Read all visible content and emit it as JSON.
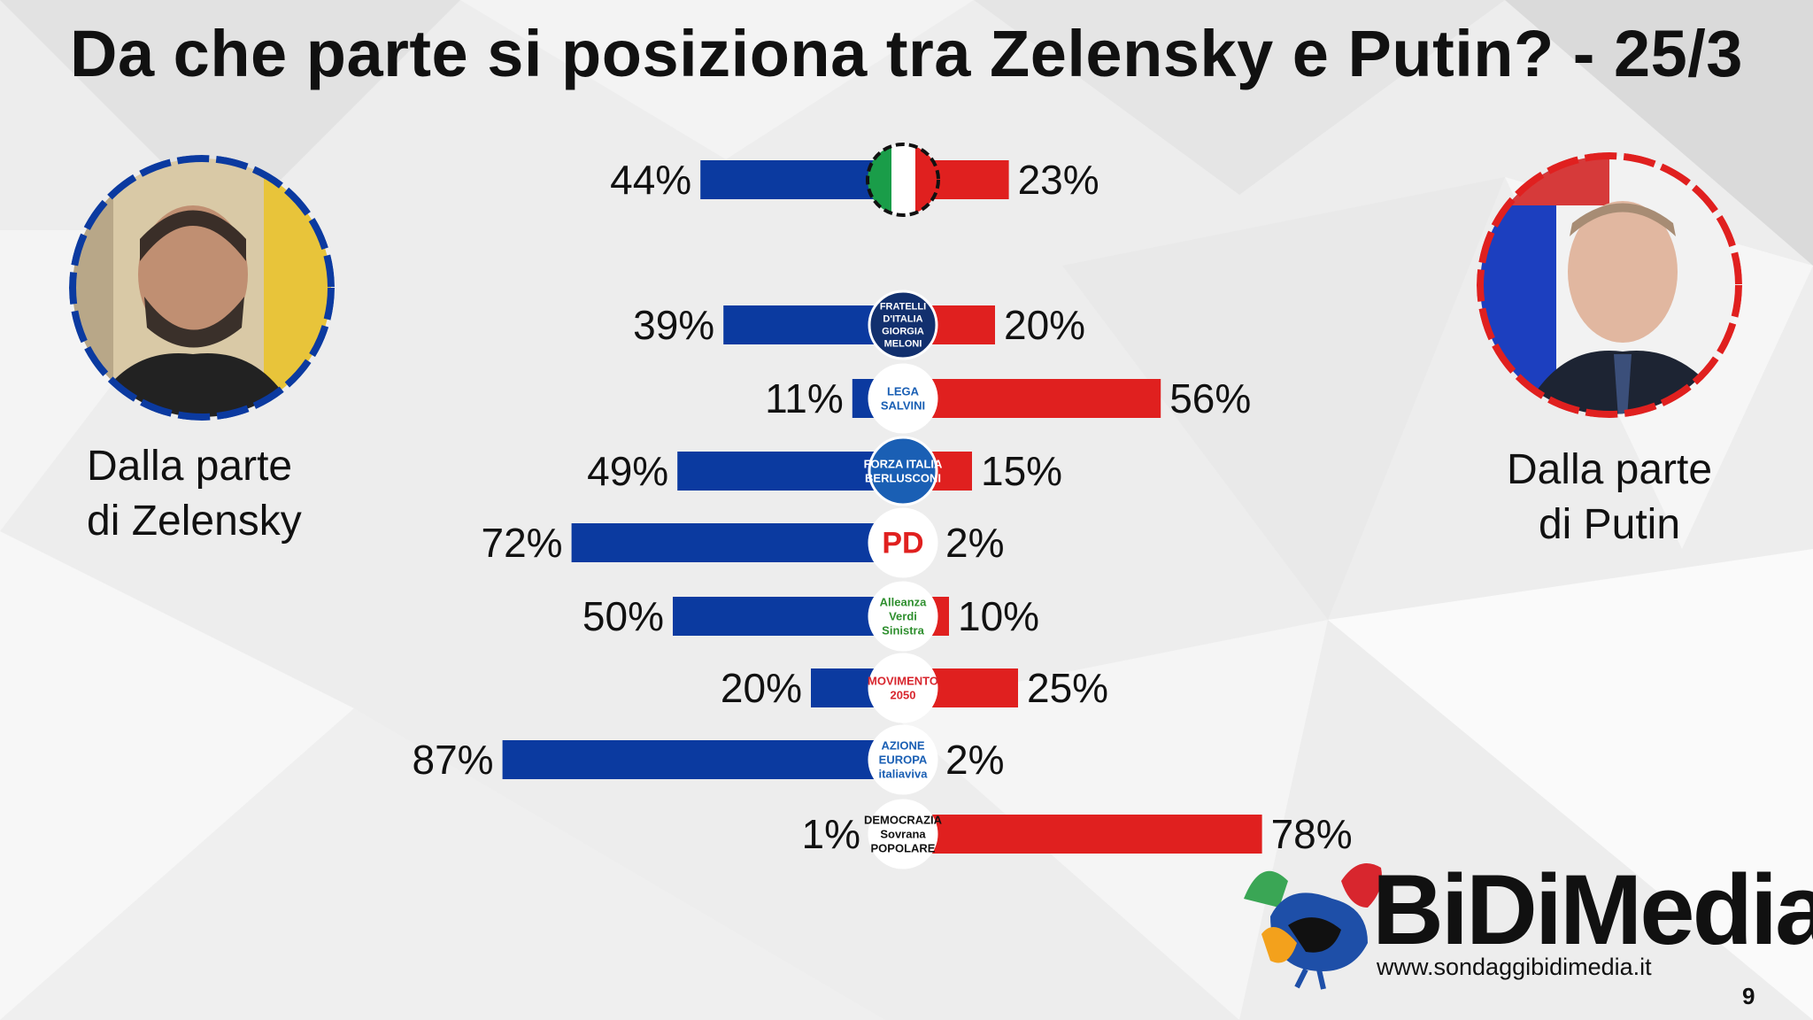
{
  "title": "Da che parte si posiziona tra Zelensky e Putin? - 25/3",
  "left_label": [
    "Dalla parte",
    "di Zelensky"
  ],
  "right_label": [
    "Dalla parte",
    "di Putin"
  ],
  "brand": {
    "name": "BiDiMedia",
    "url": "www.sondaggibidimedia.it"
  },
  "page_number": "9",
  "colors": {
    "zelensky": "#0b3aa0",
    "putin": "#e0201f",
    "text": "#111111"
  },
  "chart_data": {
    "type": "bar",
    "orientation": "horizontal-diverging",
    "title": "Da che parte si posiziona tra Zelensky e Putin? - 25/3",
    "series": [
      {
        "name": "Dalla parte di Zelensky",
        "color": "#0b3aa0"
      },
      {
        "name": "Dalla parte di Putin",
        "color": "#e0201f"
      }
    ],
    "rows": [
      {
        "group": "Italia",
        "icon": "italy-flag-icon",
        "zelensky": 44,
        "putin": 23,
        "zelensky_label": "44%",
        "putin_label": "23%"
      },
      {
        "group": "Fratelli d'Italia",
        "icon": "fratelli-ditalia-logo",
        "logo_text": [
          "FRATELLI",
          "D'ITALIA",
          "GIORGIA",
          "MELONI"
        ],
        "zelensky": 39,
        "putin": 20,
        "zelensky_label": "39%",
        "putin_label": "20%"
      },
      {
        "group": "Lega",
        "icon": "lega-logo",
        "logo_text": [
          "LEGA",
          "SALVINI"
        ],
        "zelensky": 11,
        "putin": 56,
        "zelensky_label": "11%",
        "putin_label": "56%"
      },
      {
        "group": "Forza Italia",
        "icon": "forza-italia-logo",
        "logo_text": [
          "FORZA ITALIA",
          "BERLUSCONI"
        ],
        "zelensky": 49,
        "putin": 15,
        "zelensky_label": "49%",
        "putin_label": "15%"
      },
      {
        "group": "Partito Democratico",
        "icon": "pd-logo",
        "logo_text": [
          "PD"
        ],
        "zelensky": 72,
        "putin": 2,
        "zelensky_label": "72%",
        "putin_label": "2%"
      },
      {
        "group": "Alleanza Verdi Sinistra",
        "icon": "avs-logo",
        "logo_text": [
          "Alleanza",
          "Verdi",
          "Sinistra"
        ],
        "zelensky": 50,
        "putin": 10,
        "zelensky_label": "50%",
        "putin_label": "10%"
      },
      {
        "group": "Movimento 5 Stelle",
        "icon": "m5s-logo",
        "logo_text": [
          "MOVIMENTO",
          "2050"
        ],
        "zelensky": 20,
        "putin": 25,
        "zelensky_label": "20%",
        "putin_label": "25%"
      },
      {
        "group": "Azione / Italia Viva / Più Europa",
        "icon": "centrist-parties-logo",
        "logo_text": [
          "AZIONE",
          "EUROPA",
          "italiaviva"
        ],
        "zelensky": 87,
        "putin": 2,
        "zelensky_label": "87%",
        "putin_label": "2%"
      },
      {
        "group": "Democrazia Sovrana Popolare",
        "icon": "dsp-logo",
        "logo_text": [
          "DEMOCRAZIA",
          "Sovrana",
          "POPOLARE"
        ],
        "zelensky": 1,
        "putin": 78,
        "zelensky_label": "1%",
        "putin_label": "78%"
      }
    ],
    "xlim": [
      0,
      100
    ],
    "unit": "%",
    "grid": false
  }
}
